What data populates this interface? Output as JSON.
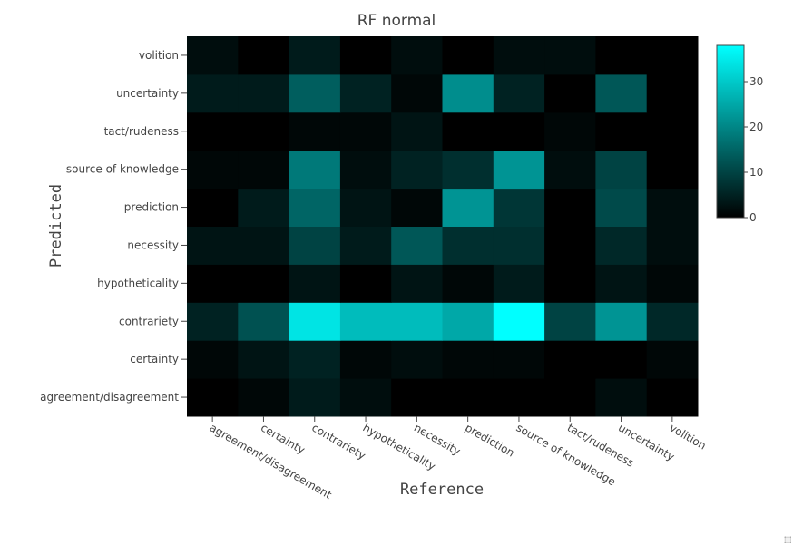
{
  "chart_data": {
    "type": "heatmap",
    "title": "RF normal",
    "xlabel": "Reference",
    "ylabel": "Predicted",
    "x_categories": [
      "agreement/disagreement",
      "certainty",
      "contrariety",
      "hypotheticality",
      "necessity",
      "prediction",
      "source of knowledge",
      "tact/rudeness",
      "uncertainty",
      "volition"
    ],
    "y_categories": [
      "agreement/disagreement",
      "certainty",
      "contrariety",
      "hypotheticality",
      "necessity",
      "prediction",
      "source of knowledge",
      "tact/rudeness",
      "uncertainty",
      "volition"
    ],
    "z": [
      [
        0,
        1,
        4,
        2,
        0,
        0,
        0,
        0,
        2,
        0
      ],
      [
        1,
        3,
        5,
        1,
        2,
        1,
        1,
        0,
        0,
        1
      ],
      [
        5,
        12,
        34,
        28,
        28,
        25,
        38,
        10,
        22,
        6
      ],
      [
        0,
        0,
        3,
        0,
        3,
        1,
        4,
        0,
        3,
        1
      ],
      [
        3,
        3,
        10,
        4,
        13,
        7,
        7,
        0,
        6,
        2
      ],
      [
        0,
        4,
        15,
        3,
        1,
        22,
        8,
        0,
        11,
        2
      ],
      [
        1,
        1,
        18,
        2,
        5,
        7,
        22,
        2,
        10,
        0
      ],
      [
        0,
        0,
        1,
        1,
        3,
        0,
        0,
        1,
        0,
        0
      ],
      [
        4,
        4,
        14,
        5,
        1,
        21,
        5,
        0,
        13,
        0
      ],
      [
        2,
        0,
        4,
        0,
        2,
        0,
        2,
        2,
        0,
        0
      ]
    ],
    "zlim": [
      0,
      38
    ],
    "colorscale": [
      "#000000",
      "#00ffff"
    ],
    "colorbar_ticks": [
      0,
      10,
      20,
      30
    ],
    "grid": false,
    "colorbar_position": "right"
  }
}
